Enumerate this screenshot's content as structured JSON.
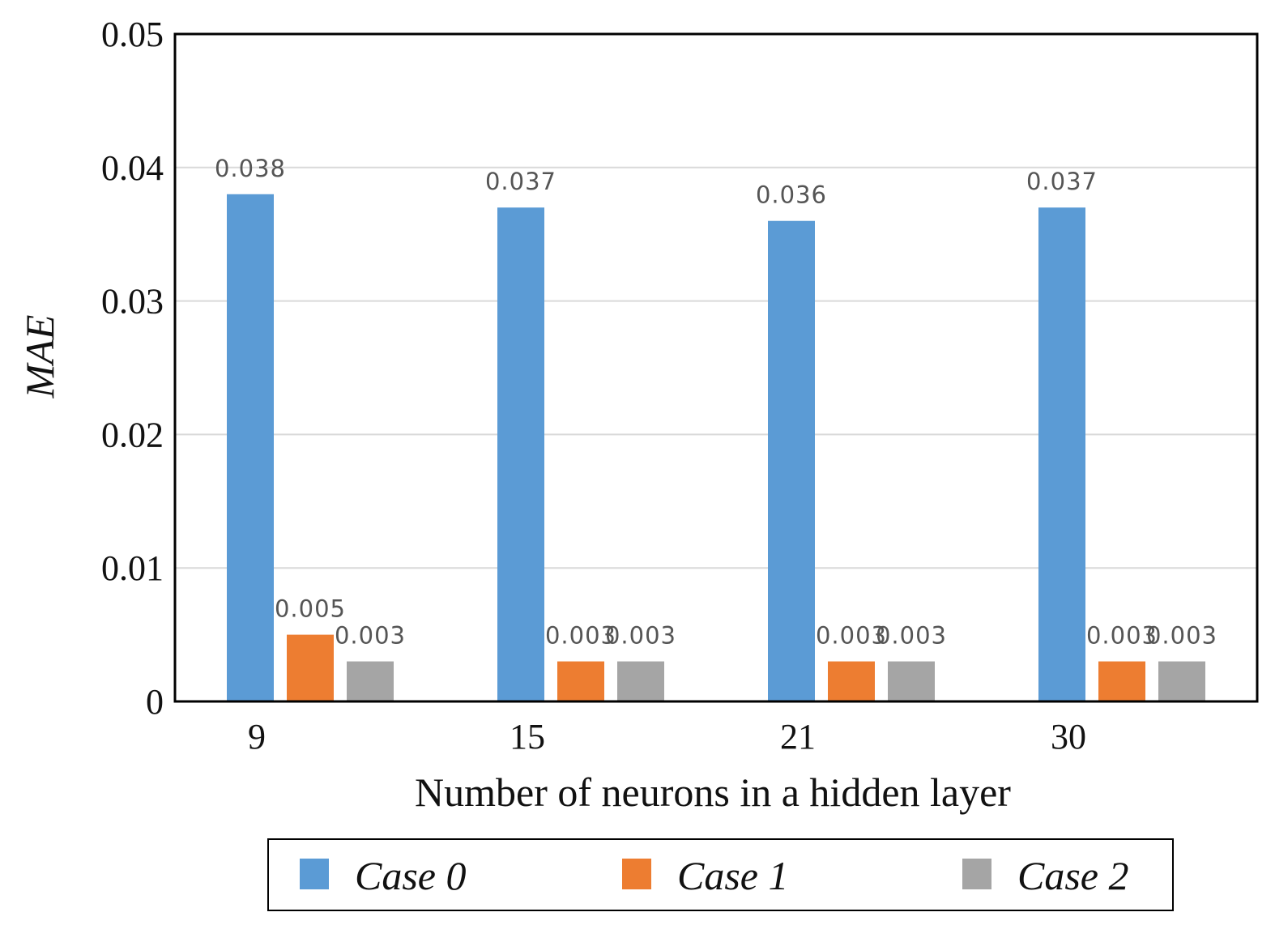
{
  "chart_data": {
    "type": "bar",
    "categories": [
      "9",
      "15",
      "21",
      "30"
    ],
    "series": [
      {
        "name": "Case 0",
        "values": [
          0.038,
          0.037,
          0.036,
          0.037
        ],
        "labels": [
          "0.038",
          "0.037",
          "0.036",
          "0.037"
        ]
      },
      {
        "name": "Case 1",
        "values": [
          0.005,
          0.003,
          0.003,
          0.003
        ],
        "labels": [
          "0.005",
          "0.003",
          "0.003",
          "0.003"
        ]
      },
      {
        "name": "Case 2",
        "values": [
          0.003,
          0.003,
          0.003,
          0.003
        ],
        "labels": [
          "0.003",
          "0.003",
          "0.003",
          "0.003"
        ]
      }
    ],
    "xlabel": "Number of neurons in a hidden layer",
    "ylabel": "MAE",
    "ylim": [
      0,
      0.05
    ],
    "yticks": [
      "0",
      "0.01",
      "0.02",
      "0.03",
      "0.04",
      "0.05"
    ],
    "grid": true,
    "legend_position": "bottom",
    "colors": [
      "#5b9bd5",
      "#ed7d31",
      "#a5a5a5"
    ]
  }
}
